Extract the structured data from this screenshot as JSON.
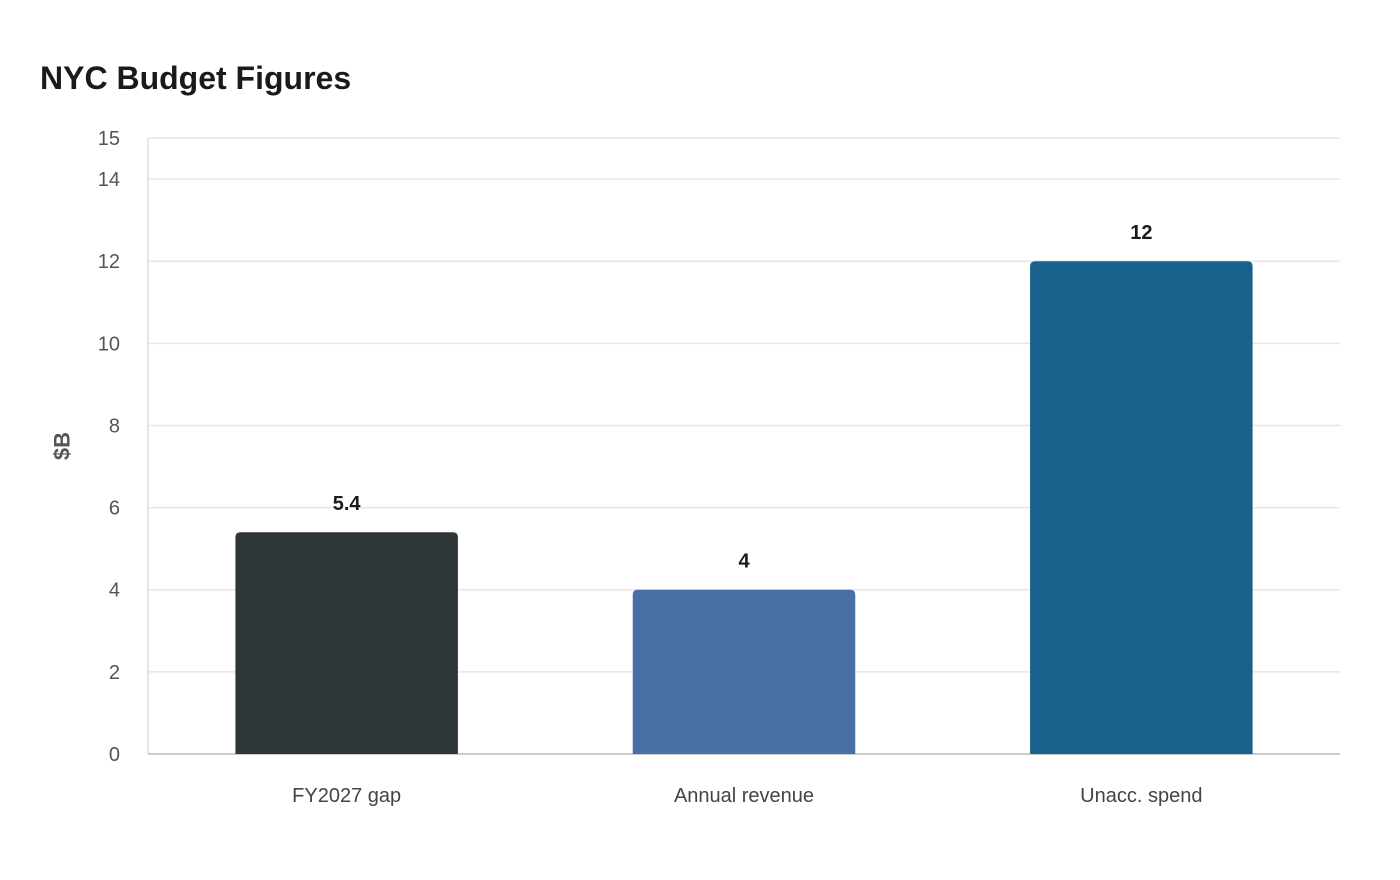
{
  "chart_data": {
    "type": "bar",
    "title": "NYC Budget Figures",
    "xlabel": "",
    "ylabel": "$B",
    "categories": [
      "FY2027 gap",
      "Annual revenue",
      "Unacc. spend"
    ],
    "values": [
      5.4,
      4,
      12
    ],
    "data_labels": [
      "5.4",
      "4",
      "12"
    ],
    "colors": [
      "#2e3638",
      "#4a6fa5",
      "#17618a"
    ],
    "ylim": [
      0,
      15
    ],
    "yticks": [
      0,
      2,
      4,
      6,
      8,
      10,
      12,
      14,
      15
    ],
    "grid": true,
    "legend": "none"
  }
}
